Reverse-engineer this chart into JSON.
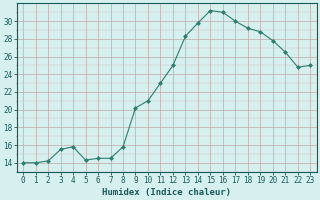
{
  "x": [
    0,
    1,
    2,
    3,
    4,
    5,
    6,
    7,
    8,
    9,
    10,
    11,
    12,
    13,
    14,
    15,
    16,
    17,
    18,
    19,
    20,
    21,
    22,
    23
  ],
  "y": [
    14,
    14,
    14.2,
    15.5,
    15.8,
    14.3,
    14.5,
    14.5,
    15.8,
    20.2,
    21.0,
    23.0,
    25.0,
    28.3,
    29.8,
    31.2,
    31.0,
    30.0,
    29.2,
    28.8,
    27.8,
    26.5,
    24.8,
    25.0
  ],
  "line_color": "#2e7d6e",
  "marker": "D",
  "marker_size": 2.0,
  "bg_color": "#d5f0ef",
  "grid_color_major": "#c0a8a8",
  "grid_color_minor": "#d4bcbc",
  "xlabel": "Humidex (Indice chaleur)",
  "xlim": [
    -0.5,
    23.5
  ],
  "ylim": [
    13,
    32
  ],
  "yticks": [
    14,
    16,
    18,
    20,
    22,
    24,
    26,
    28,
    30
  ],
  "xticks": [
    0,
    1,
    2,
    3,
    4,
    5,
    6,
    7,
    8,
    9,
    10,
    11,
    12,
    13,
    14,
    15,
    16,
    17,
    18,
    19,
    20,
    21,
    22,
    23
  ],
  "font_color": "#1a5a5a",
  "font_size": 5.5,
  "xlabel_fontsize": 6.5
}
